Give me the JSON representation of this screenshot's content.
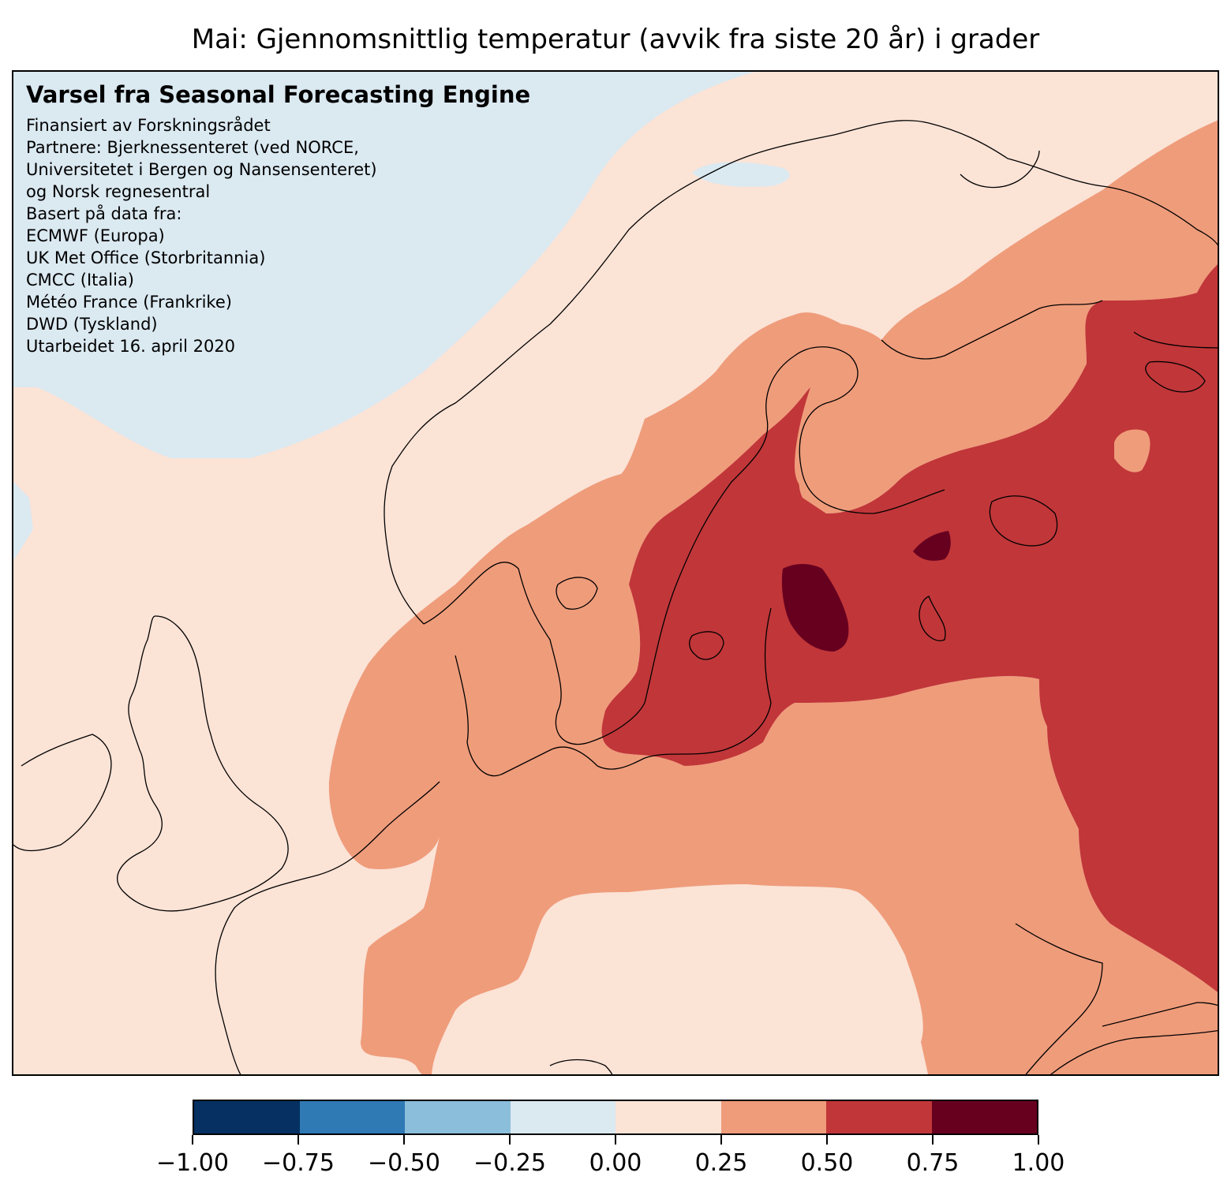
{
  "title": "Mai: Gjennomsnittlig temperatur (avvik fra siste 20 år) i grader",
  "info": {
    "heading": "Varsel fra Seasonal Forecasting Engine",
    "lines": [
      "Finansiert av Forskningsrådet",
      "Partnere: Bjerknessenteret (ved NORCE,",
      "Universitetet i Bergen og Nansensenteret)",
      "og Norsk regnesentral",
      "Basert på data fra:",
      "ECMWF (Europa)",
      "UK Met Office (Storbritannia)",
      "CMCC (Italia)",
      "Météo France (Frankrike)",
      "DWD (Tyskland)",
      "Utarbeidet 16. april 2020"
    ]
  },
  "colors": {
    "c_m100_m075": "#053061",
    "c_m075_m050": "#2f79b5",
    "c_m050_m025": "#8bbedb",
    "c_m025_000": "#dbe9f1",
    "c_000_025": "#fbe3d6",
    "c_025_050": "#ef9c7b",
    "c_050_075": "#c13639",
    "c_075_100": "#67001f"
  },
  "colorbar": {
    "ticks": [
      "−1.00",
      "−0.75",
      "−0.50",
      "−0.25",
      "0.00",
      "0.25",
      "0.50",
      "0.75",
      "1.00"
    ],
    "colors": [
      "#053061",
      "#2f79b5",
      "#8bbedb",
      "#dbe9f1",
      "#fbe3d6",
      "#ef9c7b",
      "#c13639",
      "#67001f"
    ],
    "range": [
      -1.0,
      1.0
    ]
  }
}
